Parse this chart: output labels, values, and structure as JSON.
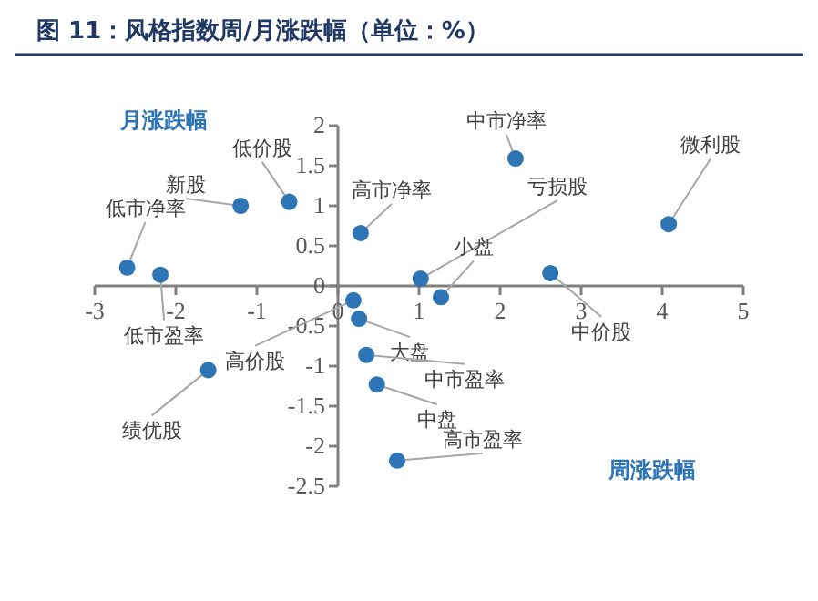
{
  "chart_data": {
    "type": "scatter",
    "title": "图 11：风格指数周/月涨跌幅（单位：%）",
    "xlabel": "周涨跌幅",
    "ylabel": "月涨跌幅",
    "xlim": [
      -3,
      5
    ],
    "xticks": [
      -3,
      -2,
      -1,
      0,
      1,
      2,
      3,
      4,
      5
    ],
    "ylim": [
      -2.5,
      2
    ],
    "yticks": [
      -2.5,
      -2,
      -1.5,
      -1,
      -0.5,
      0,
      0.5,
      1,
      1.5,
      2
    ],
    "grid": false,
    "marker": "circle",
    "x": [
      -2.6,
      -2.19,
      -1.2,
      -0.6,
      2.19,
      1.02,
      4.08,
      2.62,
      0.26,
      1.27,
      0.28,
      0.35,
      0.19,
      0.48,
      -1.6,
      0.73
    ],
    "series": [
      {
        "color": "#2e75b6",
        "values": [
          0.23,
          0.14,
          1.0,
          1.05,
          1.59,
          0.09,
          0.77,
          0.16,
          -0.41,
          -0.14,
          0.66,
          -0.86,
          -0.18,
          -1.23,
          -1.05,
          -2.18
        ]
      }
    ],
    "annotations": [
      {
        "text": "低市净率",
        "x": -2.6,
        "y": 0.23
      },
      {
        "text": "低市盈率",
        "x": -2.19,
        "y": 0.14
      },
      {
        "text": "新股",
        "x": -1.2,
        "y": 1.0
      },
      {
        "text": "低价股",
        "x": -0.6,
        "y": 1.05
      },
      {
        "text": "中市净率",
        "x": 2.19,
        "y": 1.59
      },
      {
        "text": "亏损股",
        "x": 1.02,
        "y": 0.09
      },
      {
        "text": "微利股",
        "x": 4.08,
        "y": 0.77
      },
      {
        "text": "中价股",
        "x": 2.62,
        "y": 0.16
      },
      {
        "text": "大盘",
        "x": 0.26,
        "y": -0.41
      },
      {
        "text": "小盘",
        "x": 1.27,
        "y": -0.14
      },
      {
        "text": "高市净率",
        "x": 0.28,
        "y": 0.66
      },
      {
        "text": "中市盈率",
        "x": 0.35,
        "y": -0.86
      },
      {
        "text": "高价股",
        "x": 0.19,
        "y": -0.18
      },
      {
        "text": "中盘",
        "x": 0.48,
        "y": -1.23
      },
      {
        "text": "绩优股",
        "x": -1.6,
        "y": -1.05
      },
      {
        "text": "高市盈率",
        "x": 0.73,
        "y": -2.18
      }
    ]
  }
}
